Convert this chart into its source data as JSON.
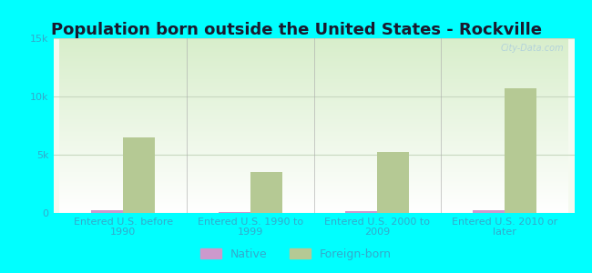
{
  "title": "Population born outside the United States - Rockville",
  "categories": [
    "Entered U.S. before\n1990",
    "Entered U.S. 1990 to\n1999",
    "Entered U.S. 2000 to\n2009",
    "Entered U.S. 2010 or\nlater"
  ],
  "native_values": [
    200,
    100,
    150,
    200
  ],
  "foreign_values": [
    6500,
    3500,
    5200,
    10700
  ],
  "native_color": "#cc99cc",
  "foreign_color": "#b5c994",
  "background_color": "#00ffff",
  "plot_bg_top": "#d8eecb",
  "plot_bg_bottom": "#f5faf0",
  "bar_width": 0.25,
  "ylim": [
    0,
    15000
  ],
  "yticks": [
    0,
    5000,
    10000,
    15000
  ],
  "ytick_labels": [
    "0",
    "5k",
    "10k",
    "15k"
  ],
  "title_fontsize": 13,
  "tick_label_fontsize": 8,
  "legend_fontsize": 9,
  "watermark": "City-Data.com",
  "axis_label_color": "#33aacc",
  "grid_color": "#c8d8c0",
  "title_color": "#1a1a2e",
  "divider_color": "#aaaaaa"
}
